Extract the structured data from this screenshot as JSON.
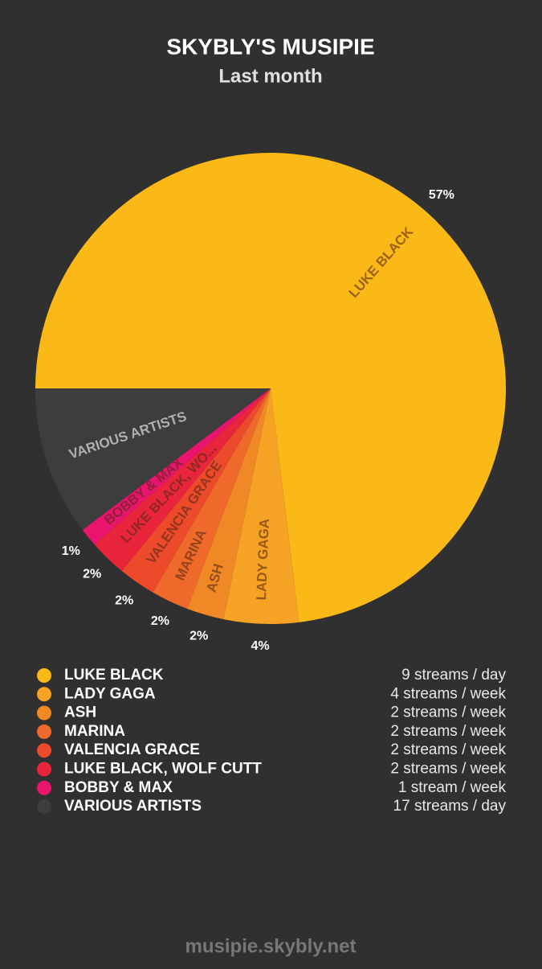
{
  "chart_data": {
    "type": "pie",
    "title": "SKYBLY'S MUSIPIE",
    "subtitle": "Last month",
    "categories": [
      "LUKE BLACK",
      "LADY GAGA",
      "ASH",
      "MARINA",
      "VALENCIA GRACE",
      "LUKE BLACK, WOLF CUTT",
      "BOBBY & MAX",
      "VARIOUS ARTISTS"
    ],
    "slice_labels": [
      "LUKE BLACK",
      "LADY GAGA",
      "ASH",
      "MARINA",
      "VALENCIA GRACE",
      "LUKE BLACK, WO...",
      "BOBBY & MAX",
      "VARIOUS ARTISTS"
    ],
    "values": [
      57,
      4,
      2,
      2,
      2,
      2,
      1,
      8
    ],
    "value_labels": [
      "57%",
      "4%",
      "2%",
      "2%",
      "2%",
      "2%",
      "1%",
      null
    ],
    "colors": [
      "#fbb917",
      "#f6a224",
      "#f08826",
      "#ef6a2a",
      "#ed4a2c",
      "#e8253a",
      "#e8146e",
      "#3d3d3d"
    ],
    "streams": [
      "9 streams / day",
      "4 streams / week",
      "2 streams / week",
      "2 streams / week",
      "2 streams / week",
      "2 streams / week",
      "1 stream / week",
      "17 streams / day"
    ],
    "footer": "musipie.skybly.net"
  }
}
